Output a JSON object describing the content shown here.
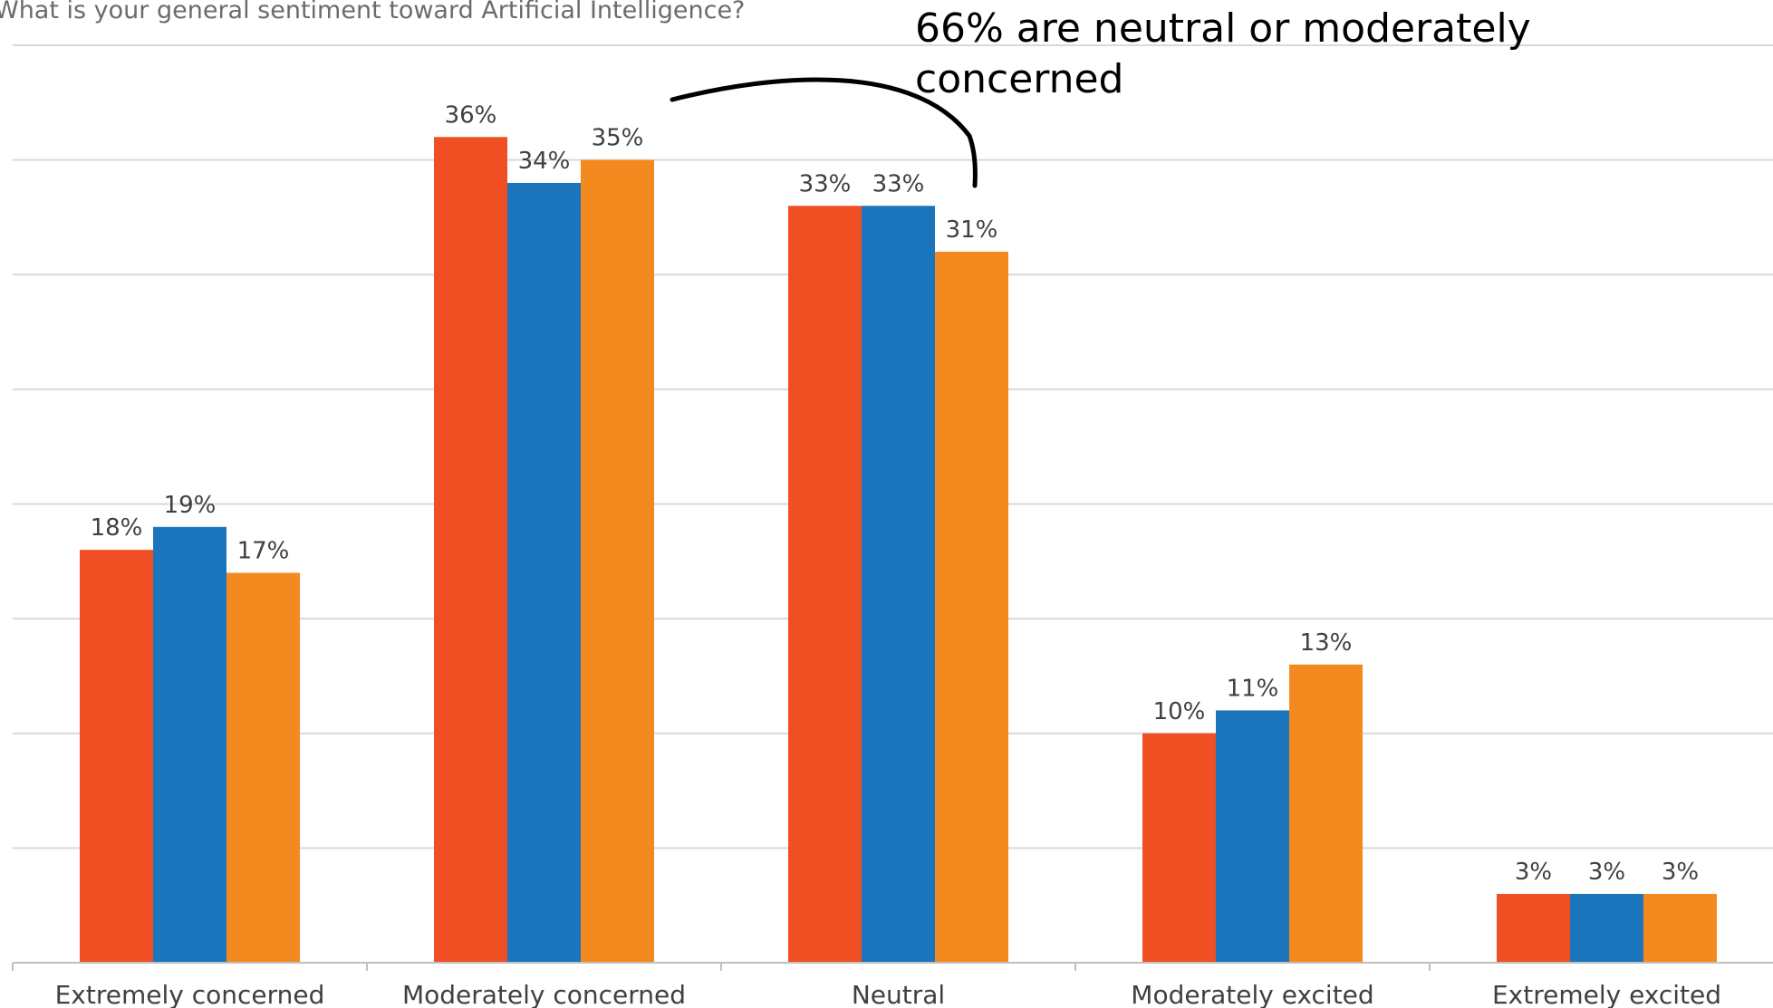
{
  "chart_data": {
    "type": "bar",
    "title": "What is your general sentiment toward Artificial Intelligence?",
    "annotation": [
      "66% are neutral or moderately",
      "concerned"
    ],
    "categories": [
      "Extremely concerned",
      "Moderately concerned",
      "Neutral",
      "Moderately excited",
      "Extremely excited"
    ],
    "series": [
      {
        "color": "#f04e23",
        "values": [
          18,
          36,
          33,
          10,
          3
        ]
      },
      {
        "color": "#1a75bc",
        "values": [
          19,
          34,
          33,
          11,
          3
        ]
      },
      {
        "color": "#f48a1f",
        "values": [
          17,
          35,
          31,
          13,
          3
        ]
      }
    ],
    "data_labels": [
      [
        "18%",
        "36%",
        "33%",
        "10%",
        "3%"
      ],
      [
        "19%",
        "34%",
        "33%",
        "11%",
        "3%"
      ],
      [
        "17%",
        "35%",
        "31%",
        "13%",
        "3%"
      ]
    ],
    "ylim": [
      0,
      40
    ],
    "grid": true,
    "y_tick_labels": false,
    "legend": "none"
  }
}
